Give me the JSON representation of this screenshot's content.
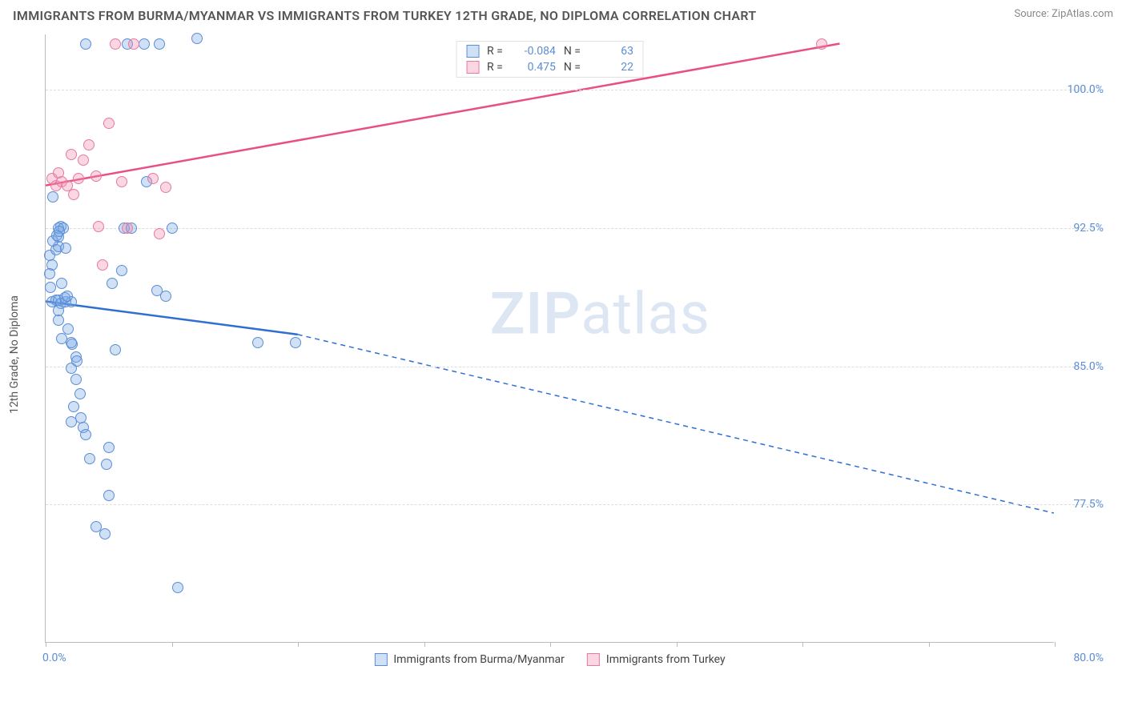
{
  "header": {
    "title": "IMMIGRANTS FROM BURMA/MYANMAR VS IMMIGRANTS FROM TURKEY 12TH GRADE, NO DIPLOMA CORRELATION CHART",
    "source": "Source: ZipAtlas.com"
  },
  "chart": {
    "type": "scatter",
    "ylabel": "12th Grade, No Diploma",
    "watermark_a": "ZIP",
    "watermark_b": "atlas",
    "xlim": [
      0,
      80
    ],
    "ylim": [
      70,
      103
    ],
    "x_ticks": [
      0,
      10,
      20,
      30,
      40,
      50,
      60,
      70,
      80
    ],
    "x_tick_label_left": "0.0%",
    "x_tick_label_right": "80.0%",
    "y_ticks": [
      77.5,
      85.0,
      92.5,
      100.0
    ],
    "y_tick_labels": [
      "77.5%",
      "85.0%",
      "92.5%",
      "100.0%"
    ],
    "grid_color": "#dddddd",
    "axis_color": "#bbbbbb",
    "label_color": "#5b8dd6",
    "series": [
      {
        "name": "Immigrants from Burma/Myanmar",
        "fill": "rgba(120,170,230,0.35)",
        "stroke": "#5b8dd6",
        "trend_color": "#2f6fd0",
        "R": "-0.084",
        "N": "63",
        "trend": {
          "x1": 0,
          "y1": 88.5,
          "x2": 20,
          "y2": 86.7,
          "x2_dash": 80,
          "y2_dash": 77.0
        },
        "points": [
          [
            0.3,
            91.0
          ],
          [
            0.5,
            90.5
          ],
          [
            0.8,
            91.3
          ],
          [
            1.0,
            92.0
          ],
          [
            1.2,
            92.6
          ],
          [
            1.0,
            92.5
          ],
          [
            1.4,
            92.5
          ],
          [
            0.5,
            88.5
          ],
          [
            0.8,
            88.6
          ],
          [
            1.0,
            88.6
          ],
          [
            1.2,
            88.4
          ],
          [
            1.6,
            88.5
          ],
          [
            0.6,
            94.2
          ],
          [
            0.3,
            90.0
          ],
          [
            1.0,
            91.5
          ],
          [
            1.6,
            91.4
          ],
          [
            1.3,
            89.5
          ],
          [
            2.0,
            88.5
          ],
          [
            2.1,
            86.2
          ],
          [
            2.4,
            85.5
          ],
          [
            2.0,
            84.9
          ],
          [
            2.4,
            84.3
          ],
          [
            2.7,
            83.5
          ],
          [
            2.2,
            82.8
          ],
          [
            2.8,
            82.2
          ],
          [
            2.0,
            82.0
          ],
          [
            3.0,
            81.7
          ],
          [
            3.2,
            81.3
          ],
          [
            3.5,
            80.0
          ],
          [
            4.0,
            76.3
          ],
          [
            4.7,
            75.9
          ],
          [
            4.8,
            79.7
          ],
          [
            5.0,
            80.6
          ],
          [
            5.3,
            89.5
          ],
          [
            5.5,
            85.9
          ],
          [
            6.0,
            90.2
          ],
          [
            6.2,
            92.5
          ],
          [
            6.8,
            92.5
          ],
          [
            6.5,
            102.5
          ],
          [
            7.8,
            102.5
          ],
          [
            8.8,
            89.1
          ],
          [
            9.0,
            102.5
          ],
          [
            10.0,
            92.5
          ],
          [
            12.0,
            102.8
          ],
          [
            8.0,
            95.0
          ],
          [
            9.5,
            88.8
          ],
          [
            3.2,
            102.5
          ],
          [
            5.0,
            78.0
          ],
          [
            1.8,
            87.0
          ],
          [
            2.0,
            86.3
          ],
          [
            2.5,
            85.3
          ],
          [
            0.4,
            89.3
          ],
          [
            1.0,
            87.5
          ],
          [
            1.3,
            86.5
          ],
          [
            10.5,
            73.0
          ],
          [
            16.8,
            86.3
          ],
          [
            19.8,
            86.3
          ],
          [
            0.6,
            91.8
          ],
          [
            0.9,
            92.1
          ],
          [
            1.1,
            92.3
          ],
          [
            1.5,
            88.7
          ],
          [
            1.7,
            88.8
          ],
          [
            1.0,
            88.0
          ]
        ]
      },
      {
        "name": "Immigrants from Turkey",
        "fill": "rgba(240,140,175,0.35)",
        "stroke": "#e77aa0",
        "trend_color": "#e94f87",
        "R": "0.475",
        "N": "22",
        "trend": {
          "x1": 0,
          "y1": 94.8,
          "x2": 63,
          "y2": 102.5,
          "x2_dash": 63,
          "y2_dash": 102.5
        },
        "points": [
          [
            0.5,
            95.2
          ],
          [
            0.8,
            94.8
          ],
          [
            1.0,
            95.5
          ],
          [
            1.3,
            95.0
          ],
          [
            1.7,
            94.8
          ],
          [
            2.0,
            96.5
          ],
          [
            2.2,
            94.3
          ],
          [
            2.6,
            95.2
          ],
          [
            3.0,
            96.2
          ],
          [
            3.4,
            97.0
          ],
          [
            4.0,
            95.3
          ],
          [
            4.2,
            92.6
          ],
          [
            4.5,
            90.5
          ],
          [
            5.0,
            98.2
          ],
          [
            5.5,
            102.5
          ],
          [
            6.0,
            95.0
          ],
          [
            6.5,
            92.5
          ],
          [
            7.0,
            102.5
          ],
          [
            8.5,
            95.2
          ],
          [
            9.0,
            92.2
          ],
          [
            9.5,
            94.7
          ],
          [
            61.5,
            102.5
          ]
        ]
      }
    ],
    "legend_top": {
      "r_label": "R =",
      "n_label": "N ="
    }
  }
}
